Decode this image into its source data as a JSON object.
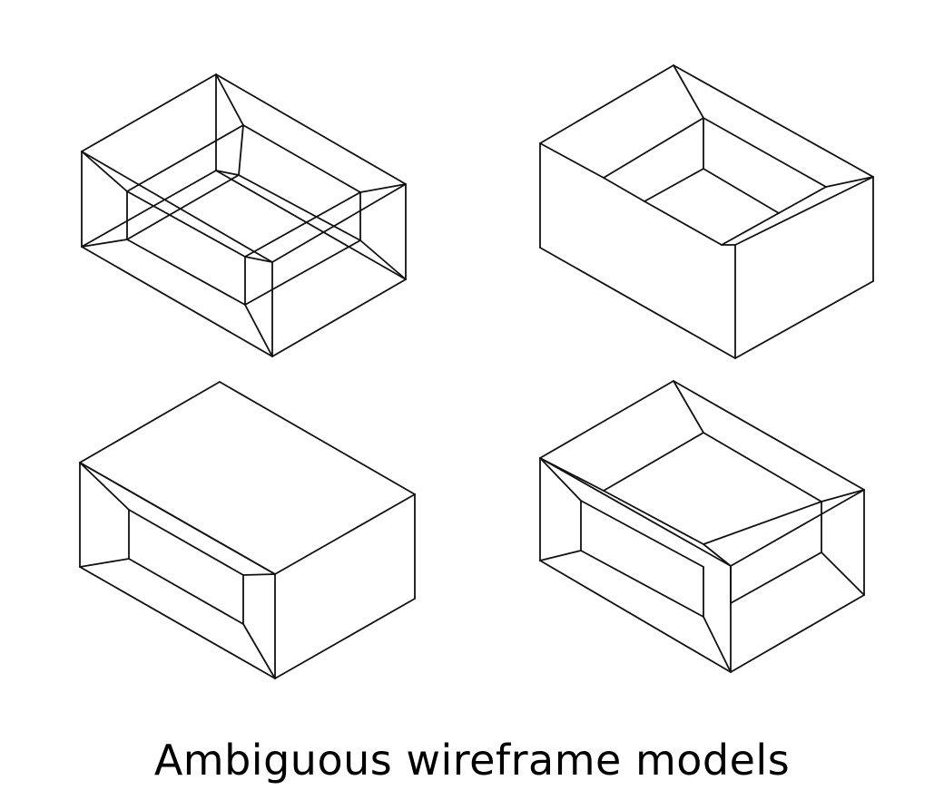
{
  "caption": "Ambiguous wireframe models",
  "stroke_color": "#111111",
  "background_color": "#ffffff",
  "models": [
    {
      "id": "model-top-left",
      "description_name": "wireframe-box-model-1"
    },
    {
      "id": "model-top-right",
      "description_name": "wireframe-box-model-2"
    },
    {
      "id": "model-bottom-left",
      "description_name": "wireframe-box-model-3"
    },
    {
      "id": "model-bottom-right",
      "description_name": "wireframe-box-model-4"
    }
  ]
}
